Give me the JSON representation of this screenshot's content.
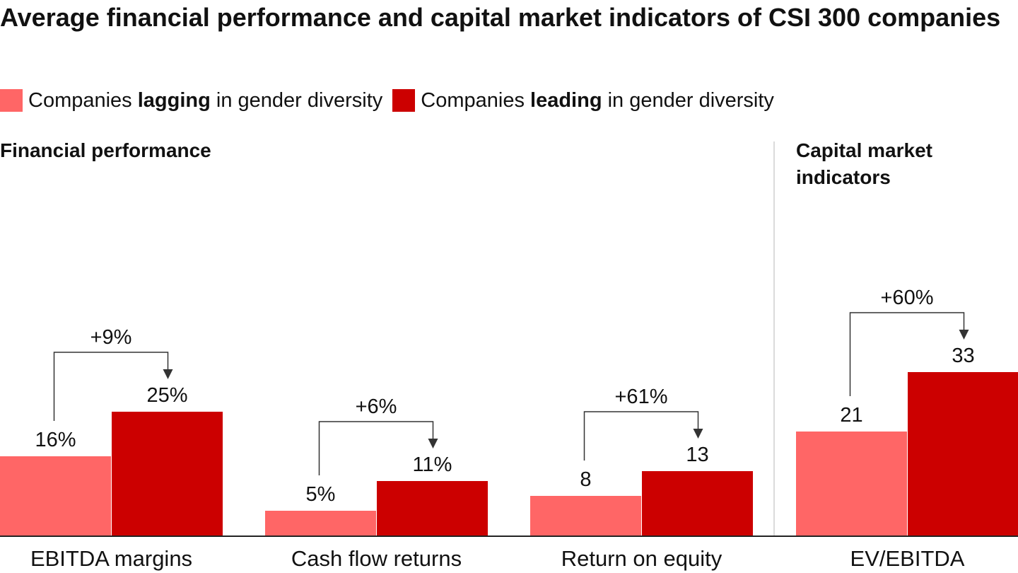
{
  "header": {
    "title": "Average financial performance and capital market indicators of CSI 300 companies"
  },
  "legend": [
    {
      "pre": "Companies ",
      "bold": "lagging",
      "post": " in gender diversity",
      "color": "#ff6666"
    },
    {
      "pre": "Companies ",
      "bold": "leading",
      "post": " in gender diversity",
      "color": "#cc0000"
    }
  ],
  "sections": {
    "financial": "Financial performance",
    "capital": "Capital market indicators"
  },
  "chart_data": {
    "type": "bar",
    "categories": [
      "EBITDA margins",
      "Cash flow returns",
      "Return on equity",
      "EV/EBITDA"
    ],
    "series": [
      {
        "name": "Companies lagging in gender diversity",
        "values": [
          16,
          5,
          8,
          21
        ],
        "labels": [
          "16%",
          "5%",
          "8",
          "21"
        ],
        "color": "#ff6666"
      },
      {
        "name": "Companies leading in gender diversity",
        "values": [
          25,
          11,
          13,
          33
        ],
        "labels": [
          "25%",
          "11%",
          "13",
          "33"
        ],
        "color": "#cc0000"
      }
    ],
    "annotations": [
      "+9%",
      "+6%",
      "+61%",
      "+60%"
    ],
    "groups": [
      "Financial performance",
      "Financial performance",
      "Financial performance",
      "Capital market indicators"
    ]
  }
}
